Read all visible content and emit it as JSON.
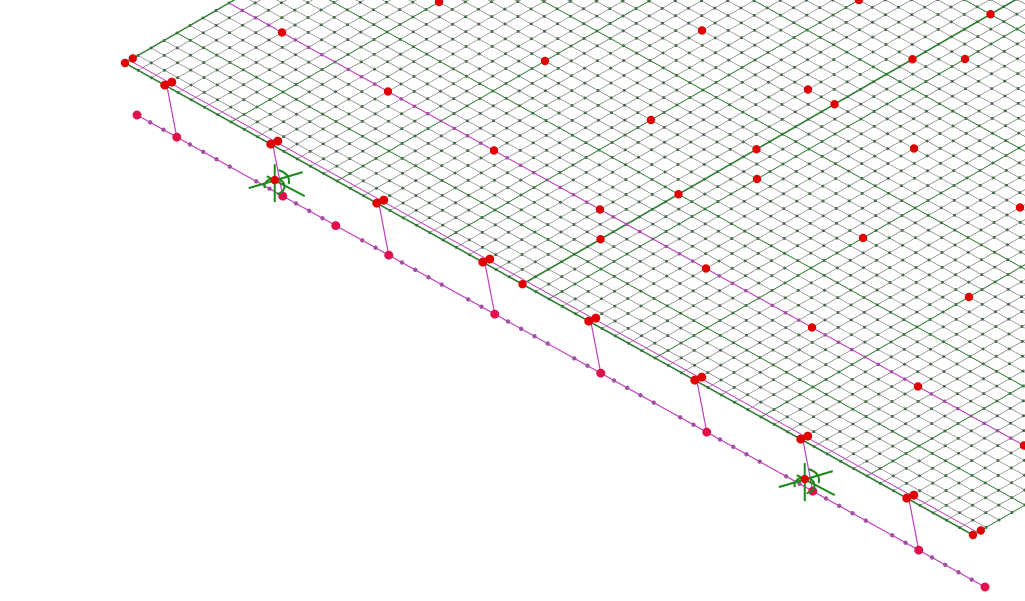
{
  "colors": {
    "background": "#ffffff",
    "mesh_line": "#6f6f6f",
    "mesh_node": "#4a6a4a",
    "slab_edge": "#2e7d32",
    "beam": "#c040c0",
    "beam_node": "#a050a0",
    "red_node": "#e00000",
    "pink_node": "#e0104a",
    "support": "#1a8a1a"
  },
  "icons": {
    "support": "support-icon"
  }
}
